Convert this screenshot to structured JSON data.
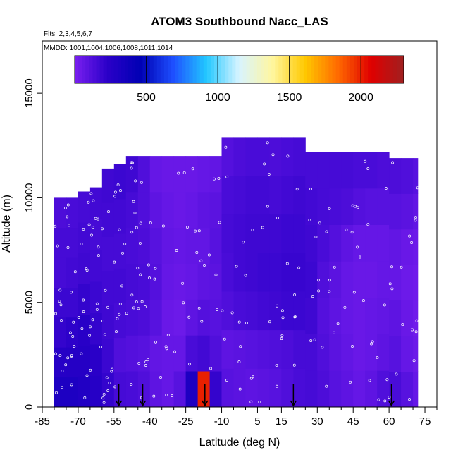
{
  "chart_data": {
    "type": "heatmap",
    "title": "ATOM3 Southbound Nacc_LAS",
    "subtitle_flights": "Flts: 2,3,4,5,6,7",
    "subtitle_dates": "MMDD: 1001,1004,1006,1008,1011,1014",
    "xlabel": "Latitude (deg N)",
    "ylabel": "Altitude (m)",
    "xlim": [
      -85,
      80
    ],
    "ylim": [
      0,
      17500
    ],
    "x_ticks": [
      -85,
      -70,
      -55,
      -40,
      -25,
      -10,
      5,
      15,
      30,
      45,
      60,
      75
    ],
    "x_tick_labels": [
      "-85",
      "-70",
      "-55",
      "-40",
      "-25",
      "-10",
      "5",
      "15",
      "30",
      "45",
      "60",
      "75"
    ],
    "y_ticks": [
      0,
      5000,
      10000,
      15000
    ],
    "y_tick_labels": [
      "0",
      "5000",
      "10000",
      "15000"
    ],
    "colorbar": {
      "range": [
        0,
        2300
      ],
      "ticks": [
        500,
        1000,
        1500,
        2000
      ],
      "tick_labels": [
        "500",
        "1000",
        "1500",
        "2000"
      ],
      "colors": [
        "#7a1ff0",
        "#2a00c8",
        "#0000b4",
        "#1e50ff",
        "#22c8ff",
        "#d8f4ff",
        "#fff6a0",
        "#ffc800",
        "#ff6a00",
        "#e00000",
        "#a02020"
      ]
    },
    "arrow_latitudes": [
      -53,
      -43,
      -17,
      20,
      61
    ],
    "columns": [
      {
        "x0": -80,
        "x1": -75,
        "top": 10000,
        "values": [
          300,
          250,
          200,
          180,
          150,
          150,
          130
        ]
      },
      {
        "x0": -75,
        "x1": -70,
        "top": 10000,
        "values": [
          300,
          260,
          220,
          180,
          160,
          150,
          140
        ]
      },
      {
        "x0": -70,
        "x1": -65,
        "top": 10300,
        "values": [
          280,
          260,
          240,
          200,
          170,
          160,
          150
        ]
      },
      {
        "x0": -65,
        "x1": -60,
        "top": 10500,
        "values": [
          250,
          230,
          200,
          180,
          160,
          150,
          160
        ]
      },
      {
        "x0": -60,
        "x1": -55,
        "top": 11400,
        "values": [
          200,
          180,
          170,
          160,
          150,
          160,
          170
        ]
      },
      {
        "x0": -55,
        "x1": -50,
        "top": 11600,
        "values": [
          150,
          120,
          150,
          160,
          150,
          160,
          180
        ]
      },
      {
        "x0": -50,
        "x1": -45,
        "top": 12000,
        "values": [
          140,
          110,
          140,
          150,
          140,
          150,
          170
        ]
      },
      {
        "x0": -45,
        "x1": -40,
        "top": 12000,
        "values": [
          120,
          100,
          130,
          140,
          130,
          120,
          120
        ]
      },
      {
        "x0": -40,
        "x1": -35,
        "top": 12000,
        "values": [
          80,
          70,
          100,
          110,
          100,
          80,
          60
        ]
      },
      {
        "x0": -35,
        "x1": -30,
        "top": 12000,
        "values": [
          60,
          60,
          50,
          60,
          70,
          60,
          50
        ]
      },
      {
        "x0": -30,
        "x1": -25,
        "top": 12000,
        "values": [
          100,
          60,
          40,
          50,
          60,
          50,
          50
        ]
      },
      {
        "x0": -25,
        "x1": -20,
        "top": 12000,
        "values": [
          300,
          140,
          80,
          60,
          70,
          60,
          50
        ]
      },
      {
        "x0": -20,
        "x1": -15,
        "top": 12000,
        "values": [
          2000,
          160,
          110,
          80,
          70,
          80,
          60
        ]
      },
      {
        "x0": -15,
        "x1": -10,
        "top": 12000,
        "values": [
          200,
          120,
          100,
          90,
          100,
          90,
          70
        ]
      },
      {
        "x0": -10,
        "x1": -5,
        "top": 12900,
        "values": [
          100,
          80,
          120,
          140,
          150,
          140,
          110
        ]
      },
      {
        "x0": -5,
        "x1": 0,
        "top": 12900,
        "values": [
          90,
          90,
          140,
          160,
          160,
          150,
          130
        ]
      },
      {
        "x0": 0,
        "x1": 5,
        "top": 12900,
        "values": [
          80,
          100,
          150,
          170,
          170,
          160,
          140
        ]
      },
      {
        "x0": 5,
        "x1": 10,
        "top": 12900,
        "values": [
          90,
          110,
          160,
          180,
          170,
          160,
          140
        ]
      },
      {
        "x0": 10,
        "x1": 15,
        "top": 12900,
        "values": [
          100,
          120,
          170,
          180,
          170,
          150,
          130
        ]
      },
      {
        "x0": 15,
        "x1": 20,
        "top": 12900,
        "values": [
          120,
          130,
          180,
          190,
          180,
          160,
          140
        ]
      },
      {
        "x0": 20,
        "x1": 25,
        "top": 12900,
        "values": [
          140,
          150,
          180,
          190,
          180,
          170,
          150
        ]
      },
      {
        "x0": 25,
        "x1": 30,
        "top": 12200,
        "values": [
          150,
          150,
          170,
          180,
          170,
          160,
          150
        ]
      },
      {
        "x0": 30,
        "x1": 35,
        "top": 12200,
        "values": [
          130,
          120,
          110,
          120,
          140,
          150,
          150
        ]
      },
      {
        "x0": 35,
        "x1": 40,
        "top": 12200,
        "values": [
          100,
          90,
          80,
          90,
          110,
          140,
          150
        ]
      },
      {
        "x0": 40,
        "x1": 45,
        "top": 12200,
        "values": [
          80,
          70,
          60,
          60,
          80,
          130,
          150
        ]
      },
      {
        "x0": 45,
        "x1": 50,
        "top": 12200,
        "values": [
          60,
          50,
          50,
          50,
          60,
          110,
          140
        ]
      },
      {
        "x0": 50,
        "x1": 55,
        "top": 12200,
        "values": [
          80,
          60,
          60,
          50,
          60,
          100,
          140
        ]
      },
      {
        "x0": 55,
        "x1": 60,
        "top": 12200,
        "values": [
          120,
          80,
          70,
          60,
          60,
          100,
          130
        ]
      },
      {
        "x0": 60,
        "x1": 65,
        "top": 11900,
        "values": [
          140,
          100,
          80,
          60,
          70,
          100,
          130
        ]
      },
      {
        "x0": 65,
        "x1": 70,
        "top": 11900,
        "values": [
          100,
          60,
          50,
          40,
          50,
          90,
          120
        ]
      },
      {
        "x0": 70,
        "x1": 72,
        "top": 11900,
        "values": [
          60,
          40,
          30,
          30,
          40,
          70,
          100
        ]
      }
    ]
  }
}
